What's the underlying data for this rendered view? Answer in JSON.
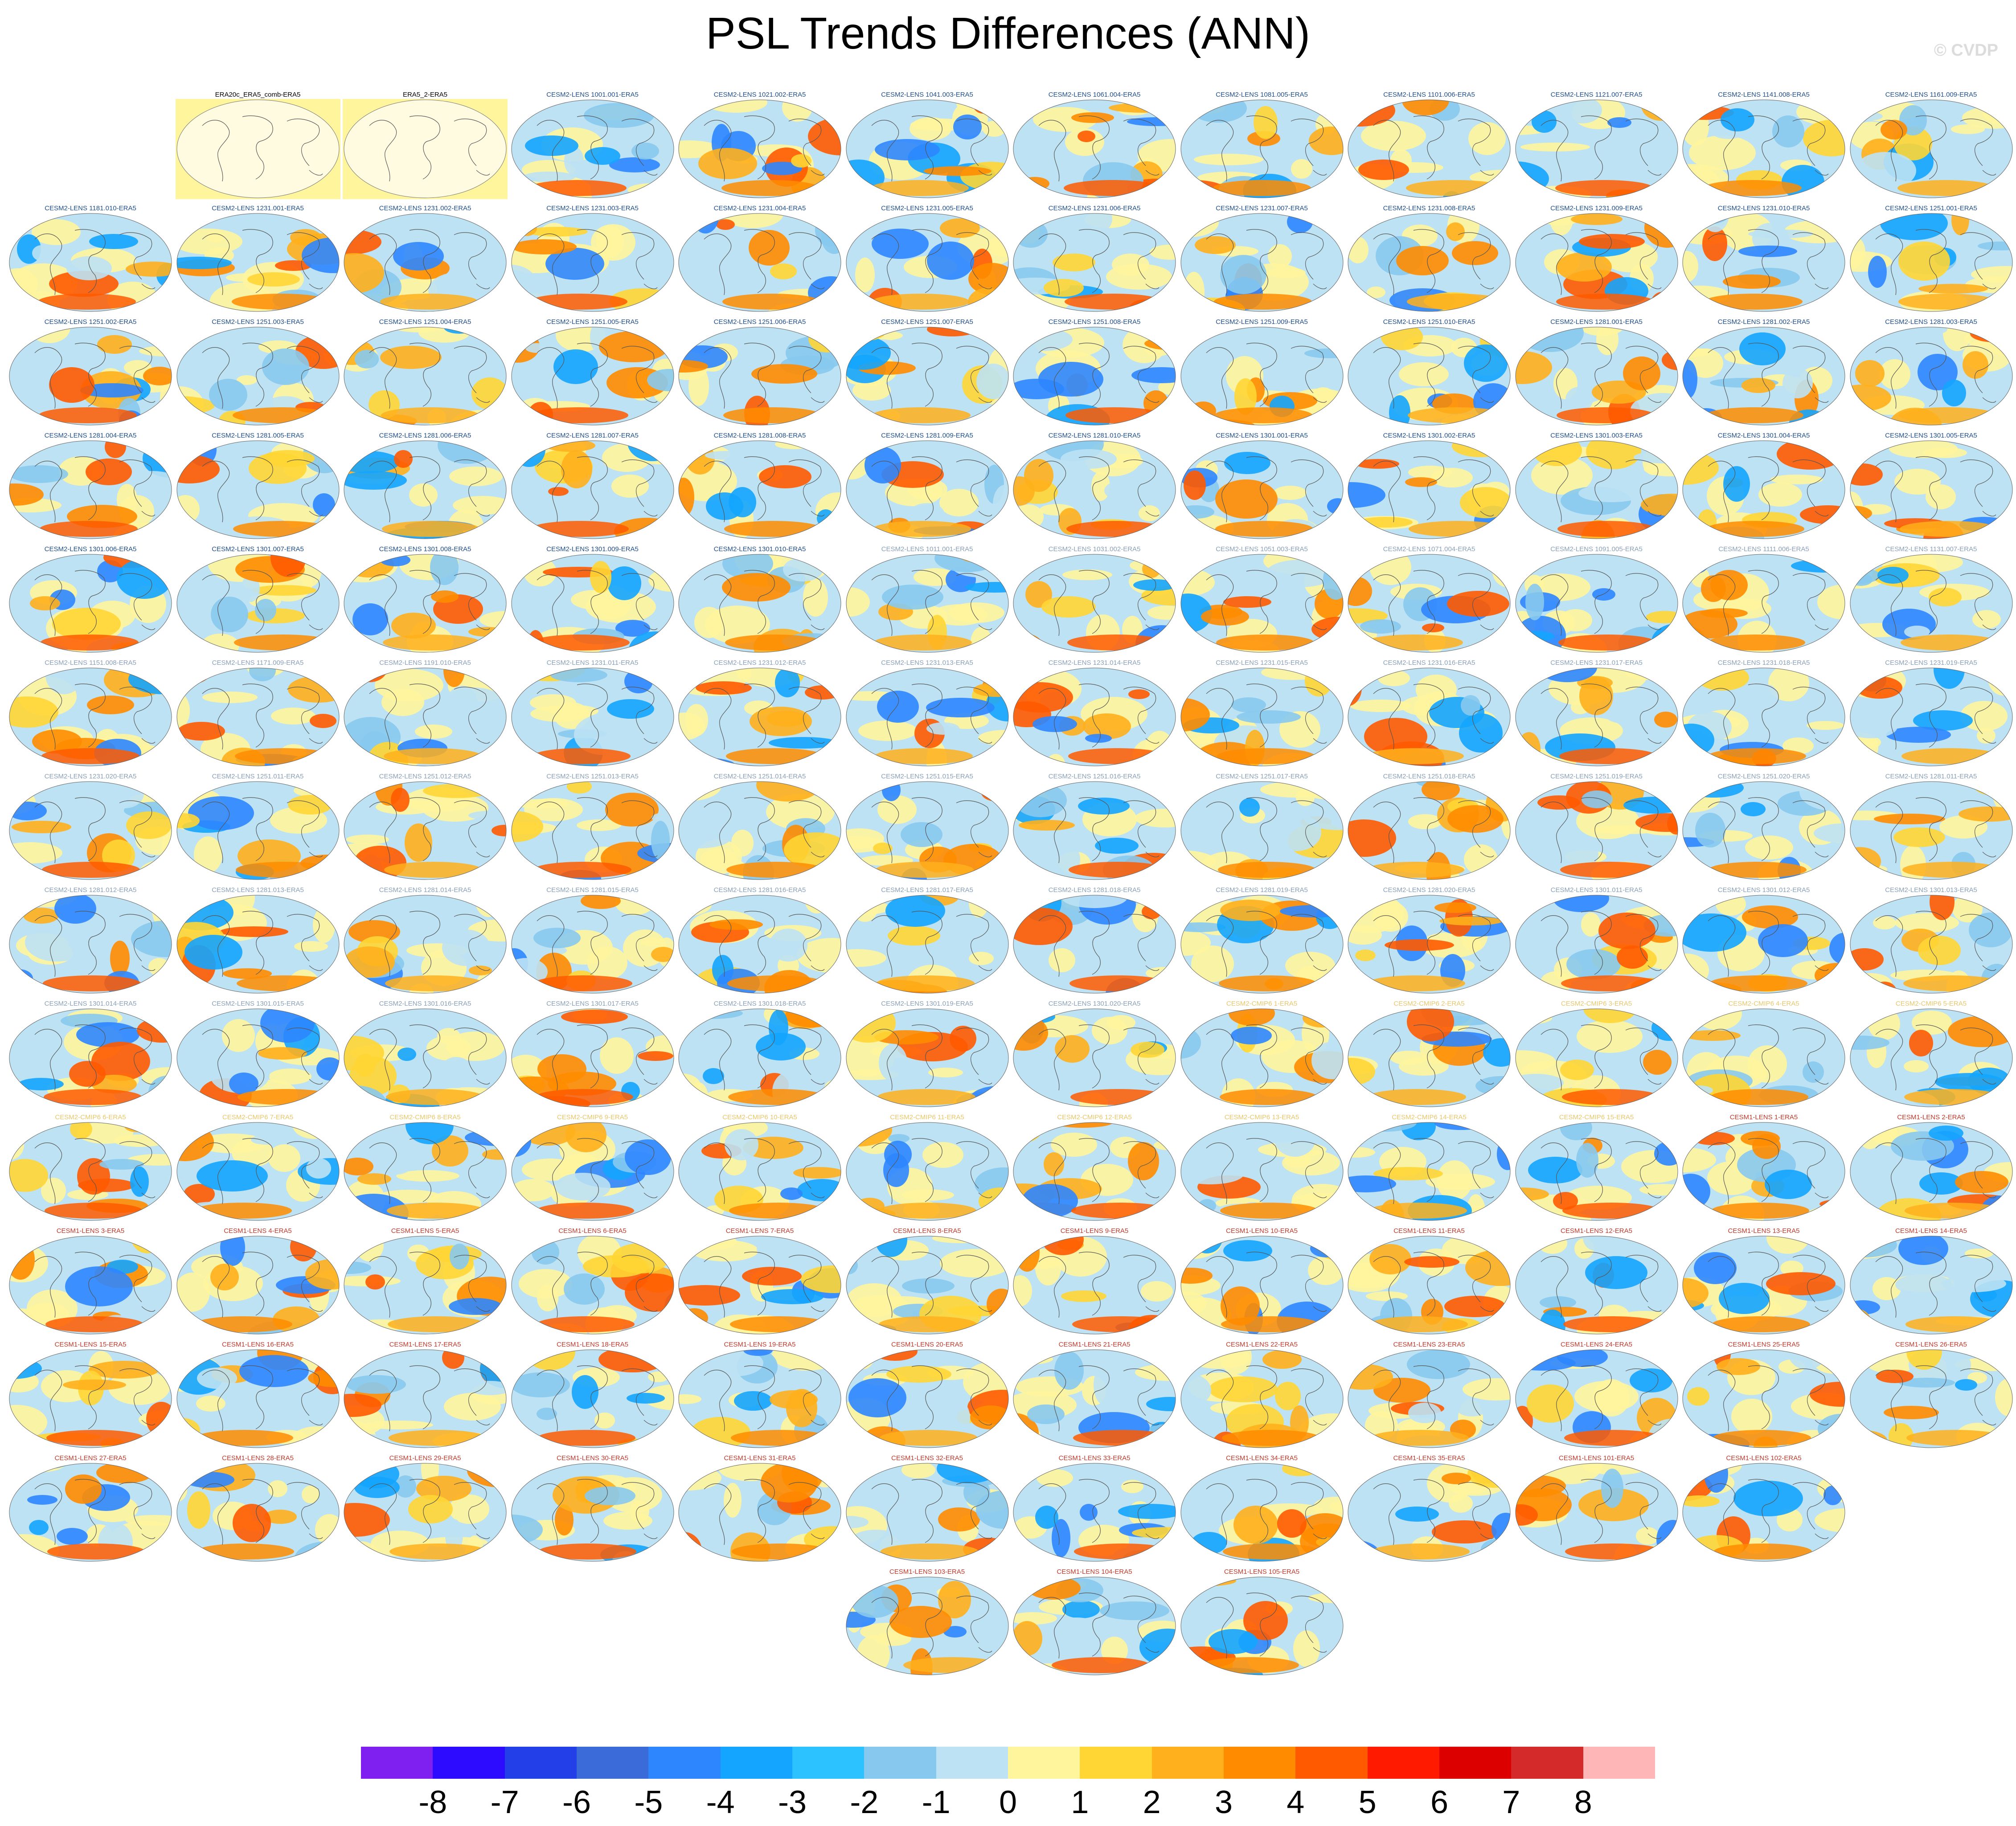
{
  "title": "PSL Trends Differences (ANN)",
  "credit": "© CVDP",
  "colors": {
    "background_panel_obs": "#fff59d",
    "label_obs": "#000000",
    "label_cesm2": "#1f4e8c",
    "label_cesm2_faded": "#8aa0b8",
    "label_cmip6": "#e8c66a",
    "label_cesm1": "#c0392b"
  },
  "panels": [
    {
      "label": "ERA20c_ERA5_comb-ERA5",
      "group": "obs"
    },
    {
      "label": "ERA5_2-ERA5",
      "group": "obs"
    },
    {
      "label": "CESM2-LENS 1001.001-ERA5",
      "group": "cesm2"
    },
    {
      "label": "CESM2-LENS 1021.002-ERA5",
      "group": "cesm2"
    },
    {
      "label": "CESM2-LENS 1041.003-ERA5",
      "group": "cesm2"
    },
    {
      "label": "CESM2-LENS 1061.004-ERA5",
      "group": "cesm2"
    },
    {
      "label": "CESM2-LENS 1081.005-ERA5",
      "group": "cesm2"
    },
    {
      "label": "CESM2-LENS 1101.006-ERA5",
      "group": "cesm2"
    },
    {
      "label": "CESM2-LENS 1121.007-ERA5",
      "group": "cesm2"
    },
    {
      "label": "CESM2-LENS 1141.008-ERA5",
      "group": "cesm2"
    },
    {
      "label": "CESM2-LENS 1161.009-ERA5",
      "group": "cesm2"
    },
    {
      "label": "CESM2-LENS 1181.010-ERA5",
      "group": "cesm2"
    },
    {
      "label": "CESM2-LENS 1231.001-ERA5",
      "group": "cesm2"
    },
    {
      "label": "CESM2-LENS 1231.002-ERA5",
      "group": "cesm2"
    },
    {
      "label": "CESM2-LENS 1231.003-ERA5",
      "group": "cesm2"
    },
    {
      "label": "CESM2-LENS 1231.004-ERA5",
      "group": "cesm2"
    },
    {
      "label": "CESM2-LENS 1231.005-ERA5",
      "group": "cesm2"
    },
    {
      "label": "CESM2-LENS 1231.006-ERA5",
      "group": "cesm2"
    },
    {
      "label": "CESM2-LENS 1231.007-ERA5",
      "group": "cesm2"
    },
    {
      "label": "CESM2-LENS 1231.008-ERA5",
      "group": "cesm2"
    },
    {
      "label": "CESM2-LENS 1231.009-ERA5",
      "group": "cesm2"
    },
    {
      "label": "CESM2-LENS 1231.010-ERA5",
      "group": "cesm2"
    },
    {
      "label": "CESM2-LENS 1251.001-ERA5",
      "group": "cesm2"
    },
    {
      "label": "CESM2-LENS 1251.002-ERA5",
      "group": "cesm2"
    },
    {
      "label": "CESM2-LENS 1251.003-ERA5",
      "group": "cesm2"
    },
    {
      "label": "CESM2-LENS 1251.004-ERA5",
      "group": "cesm2"
    },
    {
      "label": "CESM2-LENS 1251.005-ERA5",
      "group": "cesm2"
    },
    {
      "label": "CESM2-LENS 1251.006-ERA5",
      "group": "cesm2"
    },
    {
      "label": "CESM2-LENS 1251.007-ERA5",
      "group": "cesm2"
    },
    {
      "label": "CESM2-LENS 1251.008-ERA5",
      "group": "cesm2"
    },
    {
      "label": "CESM2-LENS 1251.009-ERA5",
      "group": "cesm2"
    },
    {
      "label": "CESM2-LENS 1251.010-ERA5",
      "group": "cesm2"
    },
    {
      "label": "CESM2-LENS 1281.001-ERA5",
      "group": "cesm2"
    },
    {
      "label": "CESM2-LENS 1281.002-ERA5",
      "group": "cesm2"
    },
    {
      "label": "CESM2-LENS 1281.003-ERA5",
      "group": "cesm2"
    },
    {
      "label": "CESM2-LENS 1281.004-ERA5",
      "group": "cesm2"
    },
    {
      "label": "CESM2-LENS 1281.005-ERA5",
      "group": "cesm2"
    },
    {
      "label": "CESM2-LENS 1281.006-ERA5",
      "group": "cesm2"
    },
    {
      "label": "CESM2-LENS 1281.007-ERA5",
      "group": "cesm2"
    },
    {
      "label": "CESM2-LENS 1281.008-ERA5",
      "group": "cesm2"
    },
    {
      "label": "CESM2-LENS 1281.009-ERA5",
      "group": "cesm2"
    },
    {
      "label": "CESM2-LENS 1281.010-ERA5",
      "group": "cesm2"
    },
    {
      "label": "CESM2-LENS 1301.001-ERA5",
      "group": "cesm2"
    },
    {
      "label": "CESM2-LENS 1301.002-ERA5",
      "group": "cesm2"
    },
    {
      "label": "CESM2-LENS 1301.003-ERA5",
      "group": "cesm2"
    },
    {
      "label": "CESM2-LENS 1301.004-ERA5",
      "group": "cesm2"
    },
    {
      "label": "CESM2-LENS 1301.005-ERA5",
      "group": "cesm2"
    },
    {
      "label": "CESM2-LENS 1301.006-ERA5",
      "group": "cesm2"
    },
    {
      "label": "CESM2-LENS 1301.007-ERA5",
      "group": "cesm2"
    },
    {
      "label": "CESM2-LENS 1301.008-ERA5",
      "group": "cesm2"
    },
    {
      "label": "CESM2-LENS 1301.009-ERA5",
      "group": "cesm2"
    },
    {
      "label": "CESM2-LENS 1301.010-ERA5",
      "group": "cesm2"
    },
    {
      "label": "CESM2-LENS 1011.001-ERA5",
      "group": "cesm2b"
    },
    {
      "label": "CESM2-LENS 1031.002-ERA5",
      "group": "cesm2b"
    },
    {
      "label": "CESM2-LENS 1051.003-ERA5",
      "group": "cesm2b"
    },
    {
      "label": "CESM2-LENS 1071.004-ERA5",
      "group": "cesm2b"
    },
    {
      "label": "CESM2-LENS 1091.005-ERA5",
      "group": "cesm2b"
    },
    {
      "label": "CESM2-LENS 1111.006-ERA5",
      "group": "cesm2b"
    },
    {
      "label": "CESM2-LENS 1131.007-ERA5",
      "group": "cesm2b"
    },
    {
      "label": "CESM2-LENS 1151.008-ERA5",
      "group": "cesm2b"
    },
    {
      "label": "CESM2-LENS 1171.009-ERA5",
      "group": "cesm2b"
    },
    {
      "label": "CESM2-LENS 1191.010-ERA5",
      "group": "cesm2b"
    },
    {
      "label": "CESM2-LENS 1231.011-ERA5",
      "group": "cesm2b"
    },
    {
      "label": "CESM2-LENS 1231.012-ERA5",
      "group": "cesm2b"
    },
    {
      "label": "CESM2-LENS 1231.013-ERA5",
      "group": "cesm2b"
    },
    {
      "label": "CESM2-LENS 1231.014-ERA5",
      "group": "cesm2b"
    },
    {
      "label": "CESM2-LENS 1231.015-ERA5",
      "group": "cesm2b"
    },
    {
      "label": "CESM2-LENS 1231.016-ERA5",
      "group": "cesm2b"
    },
    {
      "label": "CESM2-LENS 1231.017-ERA5",
      "group": "cesm2b"
    },
    {
      "label": "CESM2-LENS 1231.018-ERA5",
      "group": "cesm2b"
    },
    {
      "label": "CESM2-LENS 1231.019-ERA5",
      "group": "cesm2b"
    },
    {
      "label": "CESM2-LENS 1231.020-ERA5",
      "group": "cesm2b"
    },
    {
      "label": "CESM2-LENS 1251.011-ERA5",
      "group": "cesm2b"
    },
    {
      "label": "CESM2-LENS 1251.012-ERA5",
      "group": "cesm2b"
    },
    {
      "label": "CESM2-LENS 1251.013-ERA5",
      "group": "cesm2b"
    },
    {
      "label": "CESM2-LENS 1251.014-ERA5",
      "group": "cesm2b"
    },
    {
      "label": "CESM2-LENS 1251.015-ERA5",
      "group": "cesm2b"
    },
    {
      "label": "CESM2-LENS 1251.016-ERA5",
      "group": "cesm2b"
    },
    {
      "label": "CESM2-LENS 1251.017-ERA5",
      "group": "cesm2b"
    },
    {
      "label": "CESM2-LENS 1251.018-ERA5",
      "group": "cesm2b"
    },
    {
      "label": "CESM2-LENS 1251.019-ERA5",
      "group": "cesm2b"
    },
    {
      "label": "CESM2-LENS 1251.020-ERA5",
      "group": "cesm2b"
    },
    {
      "label": "CESM2-LENS 1281.011-ERA5",
      "group": "cesm2b"
    },
    {
      "label": "CESM2-LENS 1281.012-ERA5",
      "group": "cesm2b"
    },
    {
      "label": "CESM2-LENS 1281.013-ERA5",
      "group": "cesm2b"
    },
    {
      "label": "CESM2-LENS 1281.014-ERA5",
      "group": "cesm2b"
    },
    {
      "label": "CESM2-LENS 1281.015-ERA5",
      "group": "cesm2b"
    },
    {
      "label": "CESM2-LENS 1281.016-ERA5",
      "group": "cesm2b"
    },
    {
      "label": "CESM2-LENS 1281.017-ERA5",
      "group": "cesm2b"
    },
    {
      "label": "CESM2-LENS 1281.018-ERA5",
      "group": "cesm2b"
    },
    {
      "label": "CESM2-LENS 1281.019-ERA5",
      "group": "cesm2b"
    },
    {
      "label": "CESM2-LENS 1281.020-ERA5",
      "group": "cesm2b"
    },
    {
      "label": "CESM2-LENS 1301.011-ERA5",
      "group": "cesm2b"
    },
    {
      "label": "CESM2-LENS 1301.012-ERA5",
      "group": "cesm2b"
    },
    {
      "label": "CESM2-LENS 1301.013-ERA5",
      "group": "cesm2b"
    },
    {
      "label": "CESM2-LENS 1301.014-ERA5",
      "group": "cesm2b"
    },
    {
      "label": "CESM2-LENS 1301.015-ERA5",
      "group": "cesm2b"
    },
    {
      "label": "CESM2-LENS 1301.016-ERA5",
      "group": "cesm2b"
    },
    {
      "label": "CESM2-LENS 1301.017-ERA5",
      "group": "cesm2b"
    },
    {
      "label": "CESM2-LENS 1301.018-ERA5",
      "group": "cesm2b"
    },
    {
      "label": "CESM2-LENS 1301.019-ERA5",
      "group": "cesm2b"
    },
    {
      "label": "CESM2-LENS 1301.020-ERA5",
      "group": "cesm2b"
    },
    {
      "label": "CESM2-CMIP6 1-ERA5",
      "group": "cmip6"
    },
    {
      "label": "CESM2-CMIP6 2-ERA5",
      "group": "cmip6"
    },
    {
      "label": "CESM2-CMIP6 3-ERA5",
      "group": "cmip6"
    },
    {
      "label": "CESM2-CMIP6 4-ERA5",
      "group": "cmip6"
    },
    {
      "label": "CESM2-CMIP6 5-ERA5",
      "group": "cmip6"
    },
    {
      "label": "CESM2-CMIP6 6-ERA5",
      "group": "cmip6"
    },
    {
      "label": "CESM2-CMIP6 7-ERA5",
      "group": "cmip6"
    },
    {
      "label": "CESM2-CMIP6 8-ERA5",
      "group": "cmip6"
    },
    {
      "label": "CESM2-CMIP6 9-ERA5",
      "group": "cmip6"
    },
    {
      "label": "CESM2-CMIP6 10-ERA5",
      "group": "cmip6"
    },
    {
      "label": "CESM2-CMIP6 11-ERA5",
      "group": "cmip6"
    },
    {
      "label": "CESM2-CMIP6 12-ERA5",
      "group": "cmip6"
    },
    {
      "label": "CESM2-CMIP6 13-ERA5",
      "group": "cmip6"
    },
    {
      "label": "CESM2-CMIP6 14-ERA5",
      "group": "cmip6"
    },
    {
      "label": "CESM2-CMIP6 15-ERA5",
      "group": "cmip6"
    },
    {
      "label": "CESM1-LENS 1-ERA5",
      "group": "cesm1"
    },
    {
      "label": "CESM1-LENS 2-ERA5",
      "group": "cesm1"
    },
    {
      "label": "CESM1-LENS 3-ERA5",
      "group": "cesm1"
    },
    {
      "label": "CESM1-LENS 4-ERA5",
      "group": "cesm1"
    },
    {
      "label": "CESM1-LENS 5-ERA5",
      "group": "cesm1"
    },
    {
      "label": "CESM1-LENS 6-ERA5",
      "group": "cesm1"
    },
    {
      "label": "CESM1-LENS 7-ERA5",
      "group": "cesm1"
    },
    {
      "label": "CESM1-LENS 8-ERA5",
      "group": "cesm1"
    },
    {
      "label": "CESM1-LENS 9-ERA5",
      "group": "cesm1"
    },
    {
      "label": "CESM1-LENS 10-ERA5",
      "group": "cesm1"
    },
    {
      "label": "CESM1-LENS 11-ERA5",
      "group": "cesm1"
    },
    {
      "label": "CESM1-LENS 12-ERA5",
      "group": "cesm1"
    },
    {
      "label": "CESM1-LENS 13-ERA5",
      "group": "cesm1"
    },
    {
      "label": "CESM1-LENS 14-ERA5",
      "group": "cesm1"
    },
    {
      "label": "CESM1-LENS 15-ERA5",
      "group": "cesm1"
    },
    {
      "label": "CESM1-LENS 16-ERA5",
      "group": "cesm1"
    },
    {
      "label": "CESM1-LENS 17-ERA5",
      "group": "cesm1"
    },
    {
      "label": "CESM1-LENS 18-ERA5",
      "group": "cesm1"
    },
    {
      "label": "CESM1-LENS 19-ERA5",
      "group": "cesm1"
    },
    {
      "label": "CESM1-LENS 20-ERA5",
      "group": "cesm1"
    },
    {
      "label": "CESM1-LENS 21-ERA5",
      "group": "cesm1"
    },
    {
      "label": "CESM1-LENS 22-ERA5",
      "group": "cesm1"
    },
    {
      "label": "CESM1-LENS 23-ERA5",
      "group": "cesm1"
    },
    {
      "label": "CESM1-LENS 24-ERA5",
      "group": "cesm1"
    },
    {
      "label": "CESM1-LENS 25-ERA5",
      "group": "cesm1"
    },
    {
      "label": "CESM1-LENS 26-ERA5",
      "group": "cesm1"
    },
    {
      "label": "CESM1-LENS 27-ERA5",
      "group": "cesm1"
    },
    {
      "label": "CESM1-LENS 28-ERA5",
      "group": "cesm1"
    },
    {
      "label": "CESM1-LENS 29-ERA5",
      "group": "cesm1"
    },
    {
      "label": "CESM1-LENS 30-ERA5",
      "group": "cesm1"
    },
    {
      "label": "CESM1-LENS 31-ERA5",
      "group": "cesm1"
    },
    {
      "label": "CESM1-LENS 32-ERA5",
      "group": "cesm1"
    },
    {
      "label": "CESM1-LENS 33-ERA5",
      "group": "cesm1"
    },
    {
      "label": "CESM1-LENS 34-ERA5",
      "group": "cesm1"
    },
    {
      "label": "CESM1-LENS 35-ERA5",
      "group": "cesm1"
    },
    {
      "label": "CESM1-LENS 101-ERA5",
      "group": "cesm1"
    },
    {
      "label": "CESM1-LENS 102-ERA5",
      "group": "cesm1"
    },
    {
      "label": "CESM1-LENS 103-ERA5",
      "group": "cesm1"
    },
    {
      "label": "CESM1-LENS 104-ERA5",
      "group": "cesm1"
    },
    {
      "label": "CESM1-LENS 105-ERA5",
      "group": "cesm1"
    }
  ],
  "colorbar": {
    "colors": [
      "#7f1ff0",
      "#2d0bff",
      "#2340e8",
      "#3b6ad9",
      "#2e86ff",
      "#13a5ff",
      "#2cc1ff",
      "#87c9ee",
      "#bde2f4",
      "#fff59d",
      "#ffd634",
      "#ffb01c",
      "#ff8c00",
      "#ff5a00",
      "#ff1a00",
      "#dd0000",
      "#d42a2a",
      "#ffb6b6"
    ],
    "ticks": [
      "-8",
      "-7",
      "-6",
      "-5",
      "-4",
      "-3",
      "-2",
      "-1",
      "0",
      "1",
      "2",
      "3",
      "4",
      "5",
      "6",
      "7",
      "8"
    ]
  }
}
